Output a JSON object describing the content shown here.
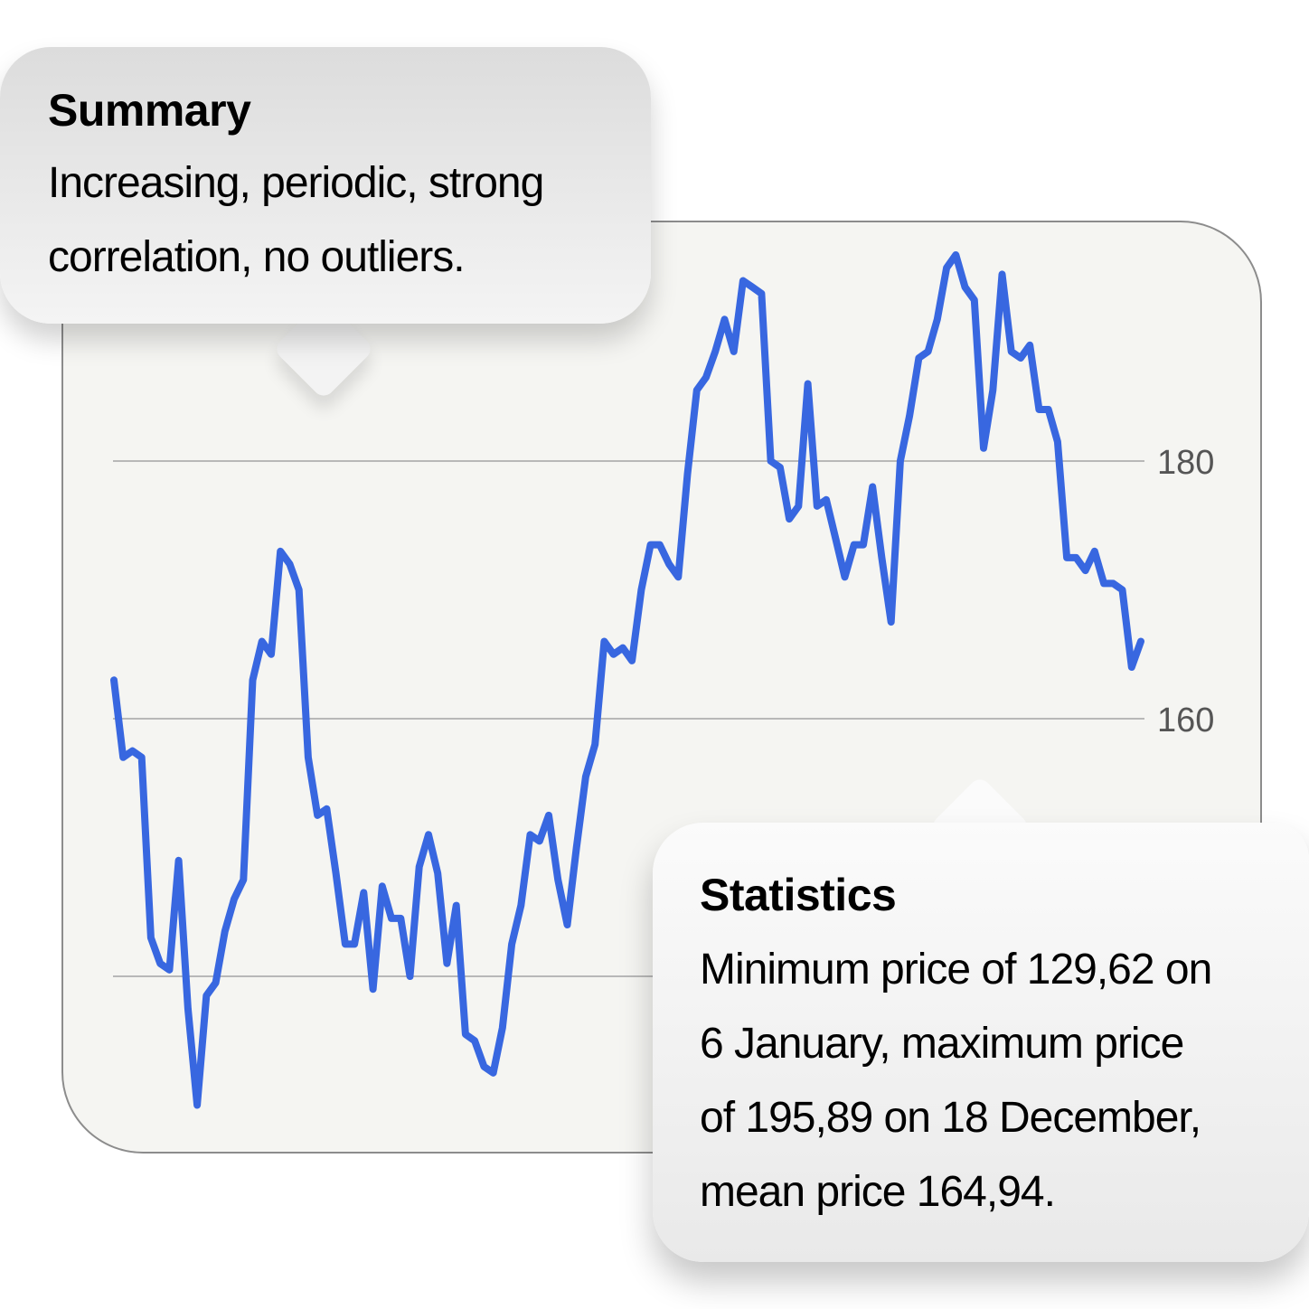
{
  "summary": {
    "title": "Summary",
    "lines": [
      "Increasing, periodic, strong",
      "correlation, no outliers."
    ]
  },
  "statistics": {
    "title": "Statistics",
    "lines": [
      "Minimum price of 129,62 on",
      "6 January, maximum price",
      "of 195,89 on 18 December,",
      "mean price 164,94."
    ]
  },
  "colors": {
    "line": "#3867e0",
    "grid": "#b8b8b8",
    "tick_text": "#555555"
  },
  "chart_data": {
    "type": "line",
    "title": "",
    "xlabel": "",
    "ylabel": "",
    "ylim": [
      127,
      196
    ],
    "yticks": [
      {
        "value": 180,
        "label": "180"
      },
      {
        "value": 160,
        "label": "160"
      },
      {
        "value": 140,
        "label": ""
      }
    ],
    "grid": true,
    "series": [
      {
        "values": [
          163.0,
          157.0,
          157.5,
          157.0,
          143.0,
          141.0,
          140.5,
          149.0,
          137.5,
          130.0,
          138.5,
          139.5,
          143.5,
          146.0,
          147.5,
          163.0,
          166.0,
          165.0,
          173.0,
          172.0,
          170.0,
          157.0,
          152.5,
          153.0,
          148.0,
          142.5,
          142.5,
          146.5,
          139.0,
          147.0,
          144.5,
          144.5,
          140.0,
          148.5,
          151.0,
          148.0,
          141.0,
          145.5,
          135.5,
          135.0,
          133.0,
          132.5,
          136.0,
          142.5,
          145.5,
          151.0,
          150.5,
          152.5,
          147.5,
          144.0,
          150.0,
          155.5,
          158.0,
          166.0,
          165.0,
          165.5,
          164.5,
          170.0,
          173.5,
          173.5,
          172.0,
          171.0,
          179.0,
          185.5,
          186.5,
          188.5,
          191.0,
          188.5,
          194.0,
          193.5,
          193.0,
          180.0,
          179.5,
          175.5,
          176.5,
          186.0,
          176.5,
          177.0,
          174.0,
          171.0,
          173.5,
          173.5,
          178.0,
          172.5,
          167.5,
          180.0,
          183.5,
          188.0,
          188.5,
          191.0,
          195.0,
          196.0,
          193.5,
          192.5,
          181.0,
          185.5,
          194.5,
          188.5,
          188.0,
          189.0,
          184.0,
          184.0,
          181.5,
          172.5,
          172.5,
          171.5,
          173.0,
          170.5,
          170.5,
          170.0,
          164.0,
          166.0
        ]
      }
    ]
  }
}
